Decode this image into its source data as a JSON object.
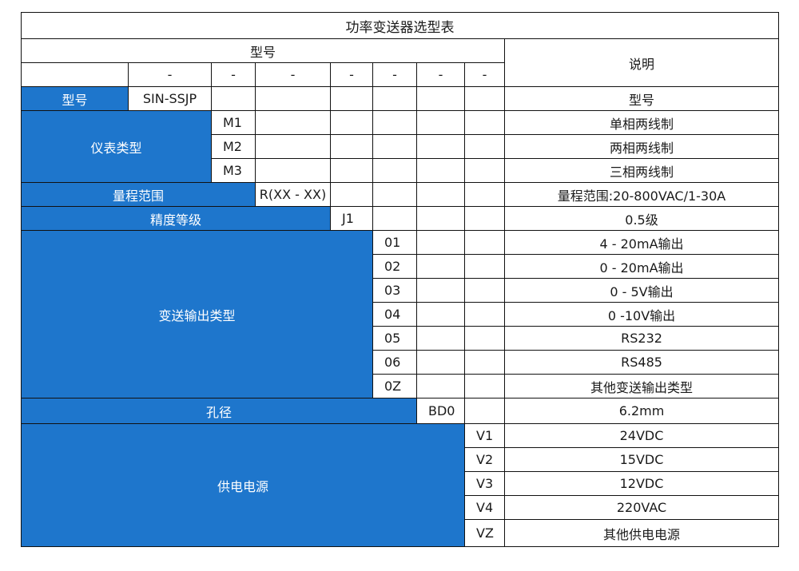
{
  "title": "功率变送器选型表",
  "header": {
    "model_label": "型号",
    "desc_label": "说明",
    "dashes": [
      "-",
      "-",
      "-",
      "-",
      "-",
      "-",
      "-"
    ]
  },
  "colors": {
    "section_fill": "#1e76cc",
    "border": "#111111"
  },
  "model_row": {
    "label": "型号",
    "value": "SIN-SSJP",
    "desc": "型号"
  },
  "meter_type": {
    "label": "仪表类型",
    "options": [
      {
        "code": "M1",
        "desc": "单相两线制"
      },
      {
        "code": "M2",
        "desc": "两相两线制"
      },
      {
        "code": "M3",
        "desc": "三相两线制"
      }
    ]
  },
  "range": {
    "label": "量程范围",
    "code": "R(XX - XX)",
    "desc": "量程范围:20-800VAC/1-30A"
  },
  "accuracy": {
    "label": "精度等级",
    "code": "J1",
    "desc": "0.5级"
  },
  "output_type": {
    "label": "变送输出类型",
    "options": [
      {
        "code": "01",
        "desc": "4 - 20mA输出"
      },
      {
        "code": "02",
        "desc": "0 - 20mA输出"
      },
      {
        "code": "03",
        "desc": "0 - 5V输出"
      },
      {
        "code": "04",
        "desc": "0 -10V输出"
      },
      {
        "code": "05",
        "desc": "RS232"
      },
      {
        "code": "06",
        "desc": "RS485"
      },
      {
        "code": "0Z",
        "desc": "其他变送输出类型"
      }
    ]
  },
  "aperture": {
    "label": "孔径",
    "code": "BD0",
    "desc": "6.2mm"
  },
  "power": {
    "label": "供电电源",
    "options": [
      {
        "code": "V1",
        "desc": "24VDC"
      },
      {
        "code": "V2",
        "desc": "15VDC"
      },
      {
        "code": "V3",
        "desc": "12VDC"
      },
      {
        "code": "V4",
        "desc": "220VAC"
      },
      {
        "code": "VZ",
        "desc": "其他供电电源"
      }
    ]
  }
}
